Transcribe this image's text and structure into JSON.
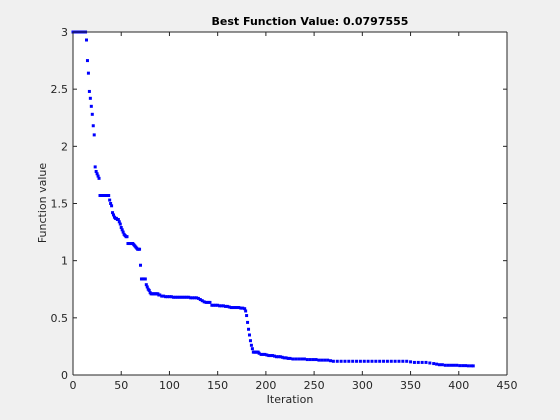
{
  "chart_data": {
    "type": "scatter",
    "title": "Best Function Value: 0.0797555",
    "xlabel": "Iteration",
    "ylabel": "Function value",
    "xlim": [
      0,
      450
    ],
    "ylim": [
      0,
      3
    ],
    "xticks": [
      "0",
      "50",
      "100",
      "150",
      "200",
      "250",
      "300",
      "350",
      "400",
      "450"
    ],
    "yticks": [
      "0",
      "0.5",
      "1",
      "1.5",
      "2",
      "2.5",
      "3"
    ],
    "grid": false,
    "legend": "none",
    "marker_color": "#0000ff",
    "series": [
      {
        "points": [
          [
            0,
            3.0
          ],
          [
            1,
            3.0
          ],
          [
            2,
            3.0
          ],
          [
            3,
            3.0
          ],
          [
            4,
            3.0
          ],
          [
            5,
            3.0
          ],
          [
            6,
            3.0
          ],
          [
            7,
            3.0
          ],
          [
            8,
            3.0
          ],
          [
            9,
            3.0
          ],
          [
            10,
            3.0
          ],
          [
            11,
            3.0
          ],
          [
            12,
            3.0
          ],
          [
            13,
            3.0
          ],
          [
            14,
            2.93
          ],
          [
            15,
            2.75
          ],
          [
            16,
            2.64
          ],
          [
            17,
            2.48
          ],
          [
            18,
            2.42
          ],
          [
            19,
            2.35
          ],
          [
            20,
            2.28
          ],
          [
            21,
            2.18
          ],
          [
            22,
            2.1
          ],
          [
            23,
            1.82
          ],
          [
            24,
            1.78
          ],
          [
            25,
            1.76
          ],
          [
            26,
            1.74
          ],
          [
            27,
            1.72
          ],
          [
            28,
            1.57
          ],
          [
            29,
            1.57
          ],
          [
            30,
            1.57
          ],
          [
            31,
            1.57
          ],
          [
            32,
            1.57
          ],
          [
            33,
            1.57
          ],
          [
            34,
            1.57
          ],
          [
            35,
            1.57
          ],
          [
            36,
            1.57
          ],
          [
            37,
            1.57
          ],
          [
            38,
            1.53
          ],
          [
            39,
            1.5
          ],
          [
            40,
            1.48
          ],
          [
            41,
            1.42
          ],
          [
            42,
            1.4
          ],
          [
            43,
            1.38
          ],
          [
            44,
            1.37
          ],
          [
            45,
            1.37
          ],
          [
            46,
            1.36
          ],
          [
            47,
            1.36
          ],
          [
            48,
            1.34
          ],
          [
            49,
            1.32
          ],
          [
            50,
            1.29
          ],
          [
            51,
            1.27
          ],
          [
            52,
            1.25
          ],
          [
            53,
            1.23
          ],
          [
            54,
            1.22
          ],
          [
            55,
            1.21
          ],
          [
            56,
            1.21
          ],
          [
            57,
            1.15
          ],
          [
            58,
            1.15
          ],
          [
            59,
            1.15
          ],
          [
            60,
            1.15
          ],
          [
            61,
            1.15
          ],
          [
            62,
            1.15
          ],
          [
            63,
            1.14
          ],
          [
            64,
            1.13
          ],
          [
            65,
            1.12
          ],
          [
            66,
            1.11
          ],
          [
            67,
            1.1
          ],
          [
            68,
            1.1
          ],
          [
            69,
            1.1
          ],
          [
            70,
            0.96
          ],
          [
            71,
            0.84
          ],
          [
            72,
            0.84
          ],
          [
            73,
            0.84
          ],
          [
            74,
            0.84
          ],
          [
            75,
            0.84
          ],
          [
            76,
            0.79
          ],
          [
            77,
            0.77
          ],
          [
            78,
            0.75
          ],
          [
            79,
            0.74
          ],
          [
            80,
            0.72
          ],
          [
            81,
            0.71
          ],
          [
            82,
            0.71
          ],
          [
            83,
            0.71
          ],
          [
            84,
            0.71
          ],
          [
            85,
            0.71
          ],
          [
            86,
            0.71
          ],
          [
            87,
            0.71
          ],
          [
            88,
            0.71
          ],
          [
            89,
            0.7
          ],
          [
            90,
            0.7
          ],
          [
            92,
            0.69
          ],
          [
            94,
            0.69
          ],
          [
            96,
            0.685
          ],
          [
            98,
            0.685
          ],
          [
            100,
            0.685
          ],
          [
            102,
            0.685
          ],
          [
            104,
            0.68
          ],
          [
            106,
            0.68
          ],
          [
            108,
            0.68
          ],
          [
            110,
            0.68
          ],
          [
            112,
            0.68
          ],
          [
            114,
            0.68
          ],
          [
            116,
            0.68
          ],
          [
            118,
            0.68
          ],
          [
            120,
            0.68
          ],
          [
            122,
            0.675
          ],
          [
            124,
            0.675
          ],
          [
            126,
            0.675
          ],
          [
            128,
            0.675
          ],
          [
            130,
            0.67
          ],
          [
            132,
            0.66
          ],
          [
            134,
            0.65
          ],
          [
            136,
            0.64
          ],
          [
            138,
            0.635
          ],
          [
            140,
            0.635
          ],
          [
            142,
            0.635
          ],
          [
            144,
            0.61
          ],
          [
            146,
            0.61
          ],
          [
            148,
            0.61
          ],
          [
            150,
            0.61
          ],
          [
            152,
            0.605
          ],
          [
            154,
            0.605
          ],
          [
            156,
            0.605
          ],
          [
            158,
            0.6
          ],
          [
            160,
            0.6
          ],
          [
            162,
            0.595
          ],
          [
            164,
            0.59
          ],
          [
            166,
            0.59
          ],
          [
            168,
            0.59
          ],
          [
            170,
            0.59
          ],
          [
            172,
            0.59
          ],
          [
            174,
            0.585
          ],
          [
            176,
            0.585
          ],
          [
            178,
            0.58
          ],
          [
            179,
            0.56
          ],
          [
            180,
            0.52
          ],
          [
            181,
            0.46
          ],
          [
            182,
            0.4
          ],
          [
            183,
            0.35
          ],
          [
            184,
            0.3
          ],
          [
            185,
            0.26
          ],
          [
            186,
            0.23
          ],
          [
            187,
            0.2
          ],
          [
            188,
            0.2
          ],
          [
            189,
            0.2
          ],
          [
            190,
            0.2
          ],
          [
            191,
            0.2
          ],
          [
            192,
            0.2
          ],
          [
            193,
            0.19
          ],
          [
            195,
            0.18
          ],
          [
            197,
            0.18
          ],
          [
            199,
            0.18
          ],
          [
            201,
            0.175
          ],
          [
            203,
            0.17
          ],
          [
            205,
            0.17
          ],
          [
            207,
            0.17
          ],
          [
            209,
            0.165
          ],
          [
            211,
            0.16
          ],
          [
            213,
            0.16
          ],
          [
            215,
            0.16
          ],
          [
            217,
            0.155
          ],
          [
            219,
            0.15
          ],
          [
            221,
            0.15
          ],
          [
            223,
            0.145
          ],
          [
            225,
            0.145
          ],
          [
            228,
            0.14
          ],
          [
            231,
            0.14
          ],
          [
            234,
            0.14
          ],
          [
            237,
            0.14
          ],
          [
            240,
            0.14
          ],
          [
            243,
            0.135
          ],
          [
            246,
            0.135
          ],
          [
            249,
            0.135
          ],
          [
            252,
            0.135
          ],
          [
            255,
            0.13
          ],
          [
            258,
            0.13
          ],
          [
            261,
            0.13
          ],
          [
            264,
            0.13
          ],
          [
            267,
            0.125
          ],
          [
            270,
            0.12
          ],
          [
            274,
            0.12
          ],
          [
            278,
            0.12
          ],
          [
            282,
            0.12
          ],
          [
            286,
            0.12
          ],
          [
            290,
            0.12
          ],
          [
            294,
            0.12
          ],
          [
            298,
            0.12
          ],
          [
            302,
            0.12
          ],
          [
            306,
            0.12
          ],
          [
            310,
            0.12
          ],
          [
            314,
            0.12
          ],
          [
            318,
            0.12
          ],
          [
            322,
            0.12
          ],
          [
            326,
            0.12
          ],
          [
            330,
            0.12
          ],
          [
            334,
            0.12
          ],
          [
            338,
            0.12
          ],
          [
            342,
            0.12
          ],
          [
            346,
            0.12
          ],
          [
            350,
            0.115
          ],
          [
            354,
            0.11
          ],
          [
            358,
            0.11
          ],
          [
            362,
            0.11
          ],
          [
            366,
            0.11
          ],
          [
            370,
            0.105
          ],
          [
            374,
            0.1
          ],
          [
            377,
            0.095
          ],
          [
            380,
            0.09
          ],
          [
            383,
            0.09
          ],
          [
            386,
            0.085
          ],
          [
            389,
            0.085
          ],
          [
            392,
            0.085
          ],
          [
            395,
            0.085
          ],
          [
            398,
            0.085
          ],
          [
            401,
            0.082
          ],
          [
            404,
            0.082
          ],
          [
            407,
            0.082
          ],
          [
            410,
            0.08
          ],
          [
            413,
            0.08
          ],
          [
            415,
            0.0797555
          ]
        ]
      }
    ]
  }
}
